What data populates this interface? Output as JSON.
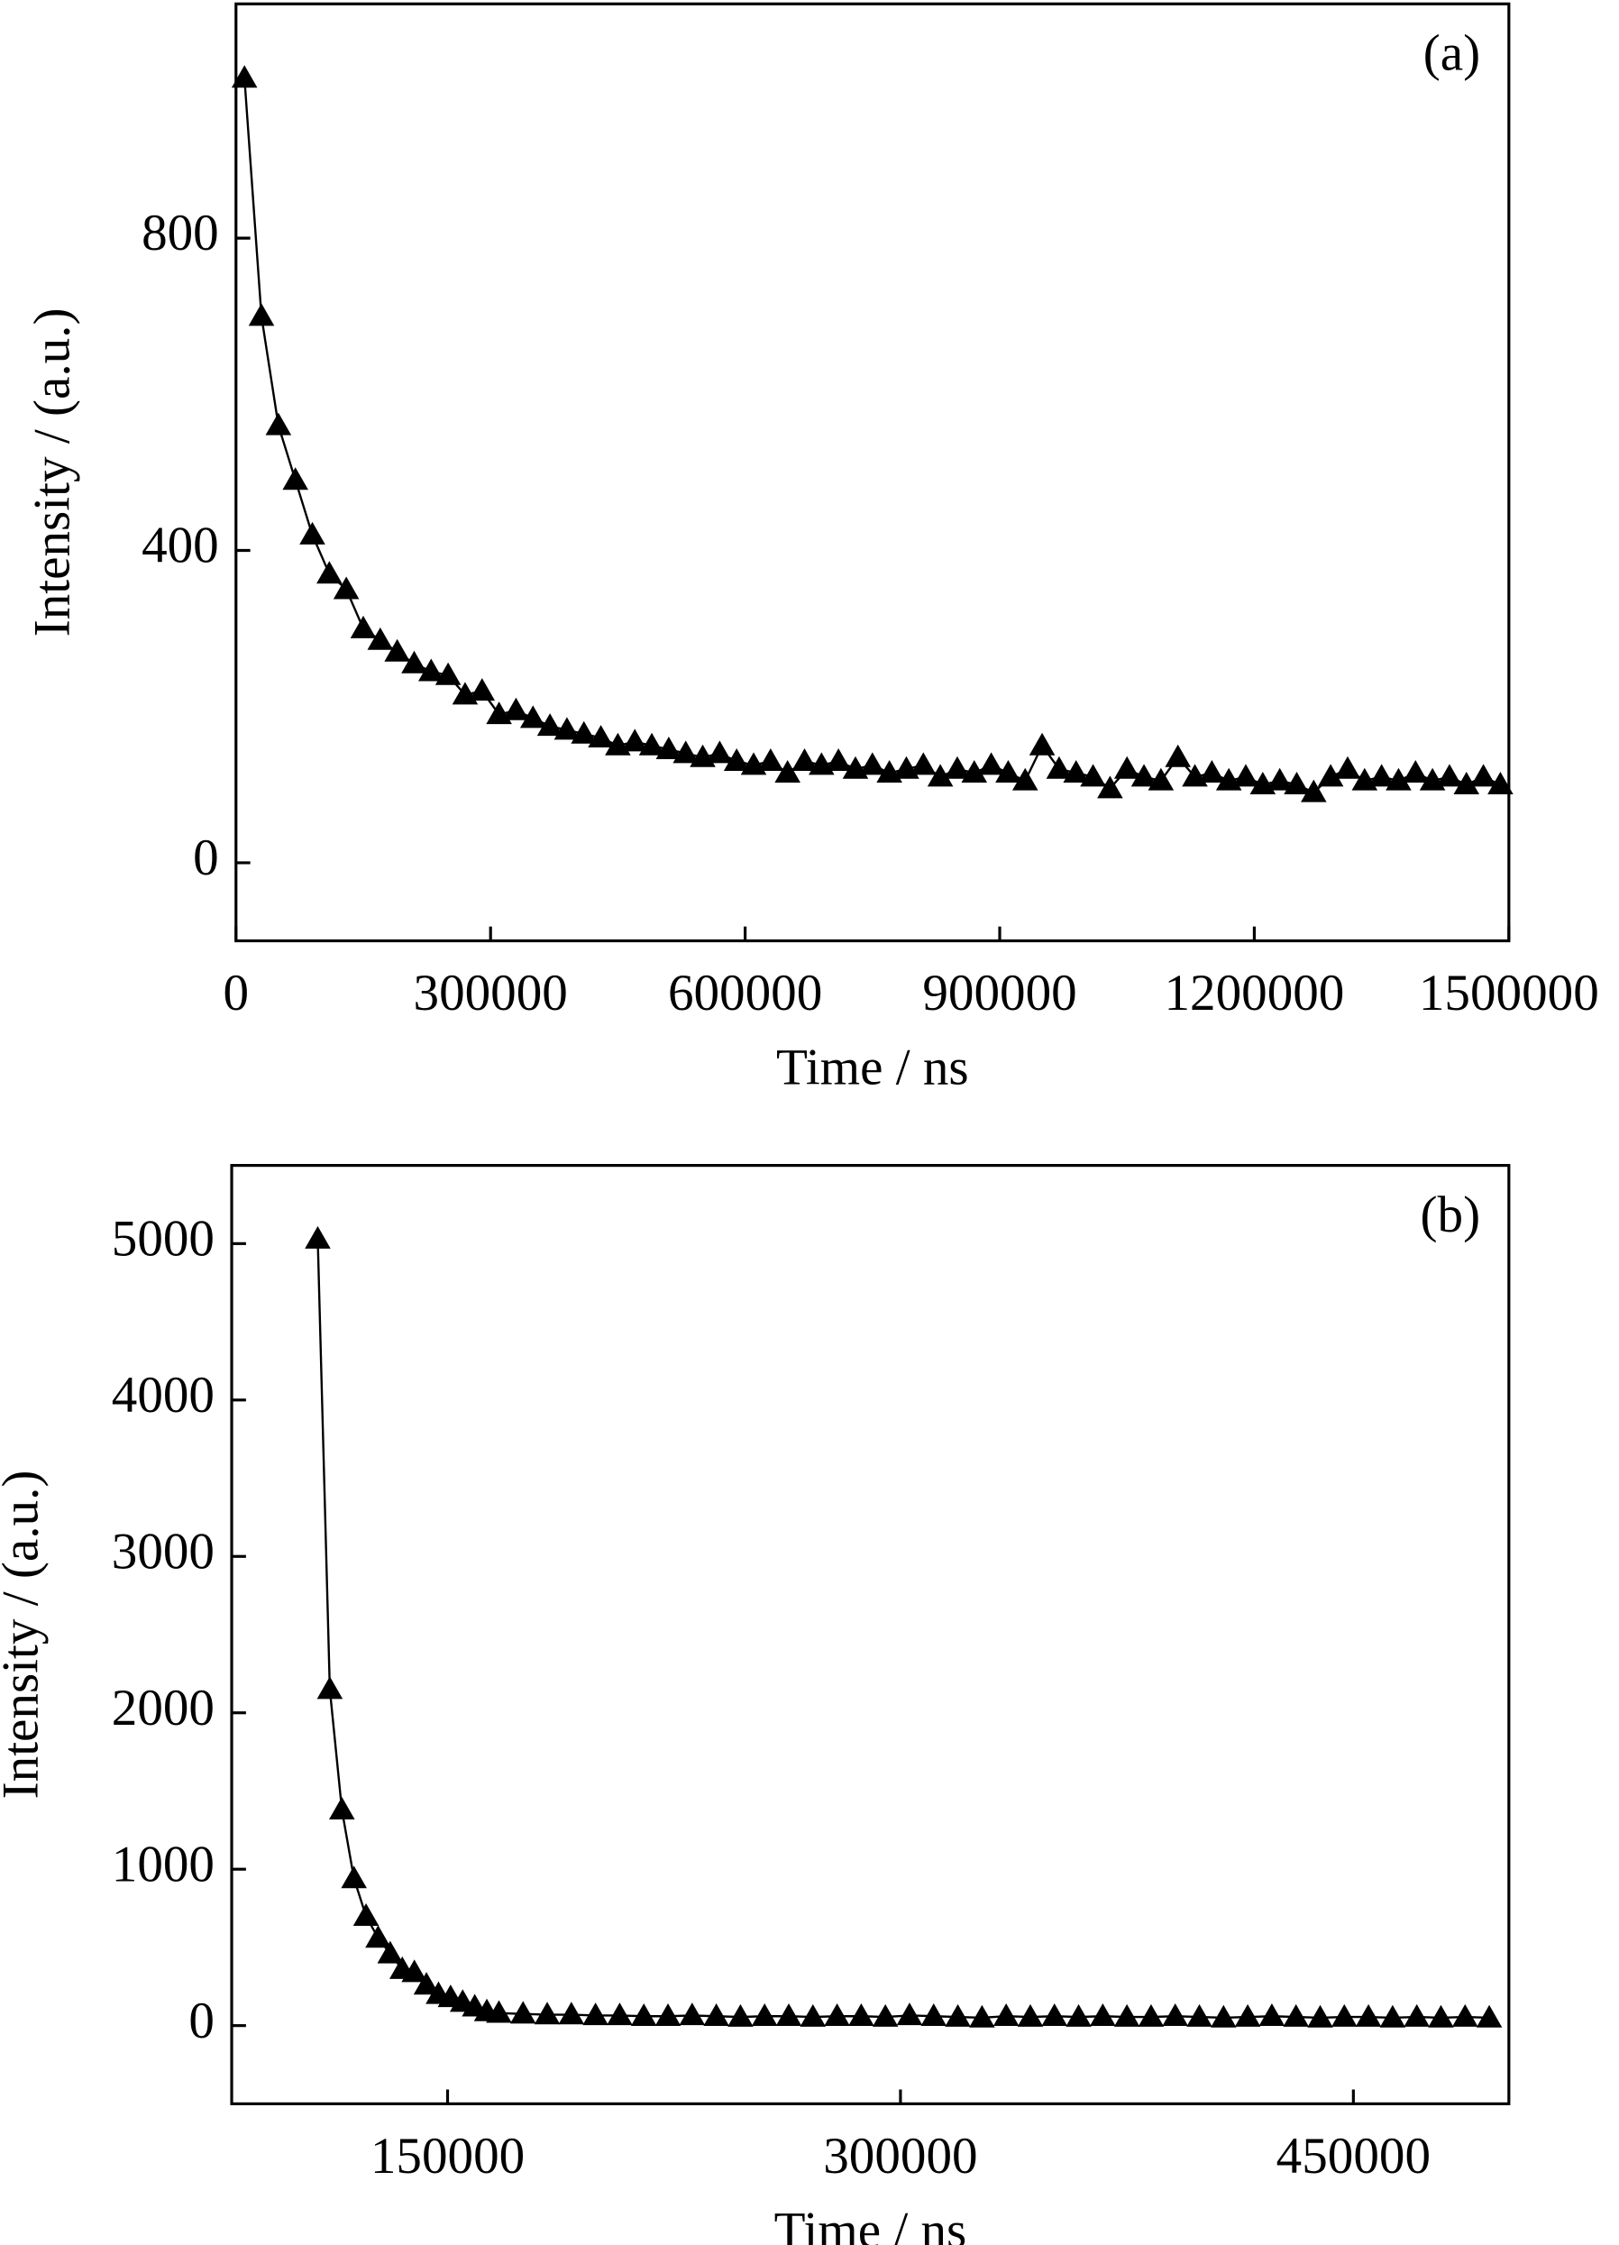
{
  "chart_data": [
    {
      "type": "line",
      "annotation": "(a)",
      "xlabel": "Time / ns",
      "ylabel": "Intensity / (a.u.)",
      "color": "#000000",
      "marker": "triangle",
      "xlim": [
        0,
        1500000
      ],
      "xticks": [
        0,
        300000,
        600000,
        900000,
        1200000,
        1500000
      ],
      "ylim": [
        -100,
        1100
      ],
      "yticks": [
        0,
        400,
        800
      ],
      "x": [
        10000,
        30000,
        50000,
        70000,
        90000,
        110000,
        130000,
        150000,
        170000,
        190000,
        210000,
        230000,
        250000,
        270000,
        290000,
        310000,
        330000,
        350000,
        370000,
        390000,
        410000,
        430000,
        450000,
        470000,
        490000,
        510000,
        530000,
        550000,
        570000,
        590000,
        610000,
        630000,
        650000,
        670000,
        690000,
        710000,
        730000,
        750000,
        770000,
        790000,
        810000,
        830000,
        850000,
        870000,
        890000,
        910000,
        930000,
        950000,
        970000,
        990000,
        1010000,
        1030000,
        1050000,
        1070000,
        1090000,
        1110000,
        1130000,
        1150000,
        1170000,
        1190000,
        1210000,
        1230000,
        1250000,
        1270000,
        1290000,
        1310000,
        1330000,
        1350000,
        1370000,
        1390000,
        1410000,
        1430000,
        1450000,
        1470000,
        1490000
      ],
      "values": [
        1005,
        700,
        560,
        490,
        420,
        370,
        350,
        300,
        285,
        270,
        255,
        245,
        240,
        215,
        220,
        190,
        195,
        185,
        175,
        170,
        165,
        160,
        150,
        155,
        150,
        145,
        140,
        135,
        140,
        130,
        125,
        130,
        115,
        130,
        125,
        130,
        120,
        125,
        115,
        120,
        125,
        110,
        120,
        115,
        125,
        115,
        105,
        150,
        120,
        115,
        110,
        95,
        120,
        110,
        105,
        135,
        110,
        115,
        105,
        110,
        100,
        105,
        100,
        90,
        110,
        120,
        105,
        110,
        105,
        115,
        105,
        110,
        100,
        110,
        100
      ]
    },
    {
      "type": "line",
      "annotation": "(b)",
      "xlabel": "Time / ns",
      "ylabel": "Intensity / (a.u.)",
      "color": "#000000",
      "marker": "triangle",
      "xlim": [
        78500,
        501500
      ],
      "xticks": [
        150000,
        300000,
        450000
      ],
      "ylim": [
        -500,
        5500
      ],
      "yticks": [
        0,
        1000,
        2000,
        3000,
        4000,
        5000
      ],
      "x": [
        107000,
        111000,
        115000,
        119000,
        123000,
        127000,
        131000,
        135000,
        139000,
        143000,
        147000,
        151000,
        155000,
        159000,
        163000,
        167000,
        175000,
        183000,
        191000,
        199000,
        207000,
        215000,
        223000,
        231000,
        239000,
        247000,
        255000,
        263000,
        271000,
        279000,
        287000,
        295000,
        303000,
        311000,
        319000,
        327000,
        335000,
        343000,
        351000,
        359000,
        367000,
        375000,
        383000,
        391000,
        399000,
        407000,
        415000,
        423000,
        431000,
        439000,
        447000,
        455000,
        463000,
        471000,
        479000,
        487000,
        495000
      ],
      "values": [
        5030,
        2150,
        1380,
        940,
        700,
        560,
        460,
        360,
        340,
        260,
        200,
        180,
        150,
        120,
        90,
        80,
        75,
        70,
        70,
        65,
        65,
        60,
        60,
        65,
        60,
        55,
        60,
        60,
        55,
        60,
        60,
        55,
        65,
        60,
        55,
        50,
        60,
        55,
        60,
        55,
        60,
        55,
        55,
        60,
        55,
        50,
        55,
        60,
        55,
        50,
        55,
        55,
        50,
        55,
        50,
        55,
        50
      ]
    }
  ]
}
